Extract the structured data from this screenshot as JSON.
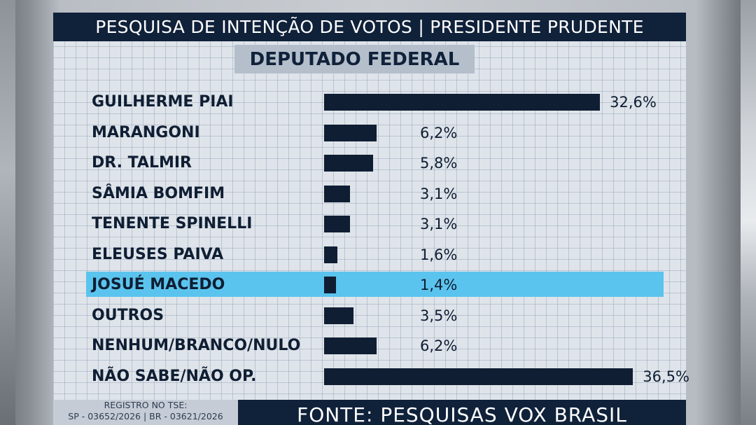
{
  "header": {
    "title": "PESQUISA DE INTENÇÃO DE VOTOS | PRESIDENTE PRUDENTE"
  },
  "subtitle": "DEPUTADO FEDERAL",
  "colors": {
    "bar": "#0f1e33",
    "header": "#10213a",
    "highlight": "#5bc4ee"
  },
  "chart_data": {
    "type": "bar",
    "orientation": "horizontal",
    "title": "PESQUISA DE INTENÇÃO DE VOTOS | PRESIDENTE PRUDENTE",
    "subtitle": "DEPUTADO FEDERAL",
    "categories": [
      "GUILHERME PIAI",
      "MARANGONI",
      "DR. TALMIR",
      "SÂMIA BOMFIM",
      "TENENTE SPINELLI",
      "ELEUSES PAIVA",
      "JOSUÉ MACEDO",
      "OUTROS",
      "NENHUM/BRANCO/NULO",
      "NÃO SABE/NÃO OP."
    ],
    "values": [
      32.6,
      6.2,
      5.8,
      3.1,
      3.1,
      1.6,
      1.4,
      3.5,
      6.2,
      36.5
    ],
    "value_labels": [
      "32,6%",
      "6,2%",
      "5,8%",
      "3,1%",
      "3,1%",
      "1,6%",
      "1,4%",
      "3,5%",
      "6,2%",
      "36,5%"
    ],
    "highlighted": "JOSUÉ MACEDO",
    "grid": true
  },
  "footer": {
    "registro_line1": "REGISTRO NO TSE:",
    "registro_line2": "SP - 03652/2026 | BR - 03621/2026",
    "fonte": "FONTE: PESQUISAS VOX BRASIL"
  }
}
